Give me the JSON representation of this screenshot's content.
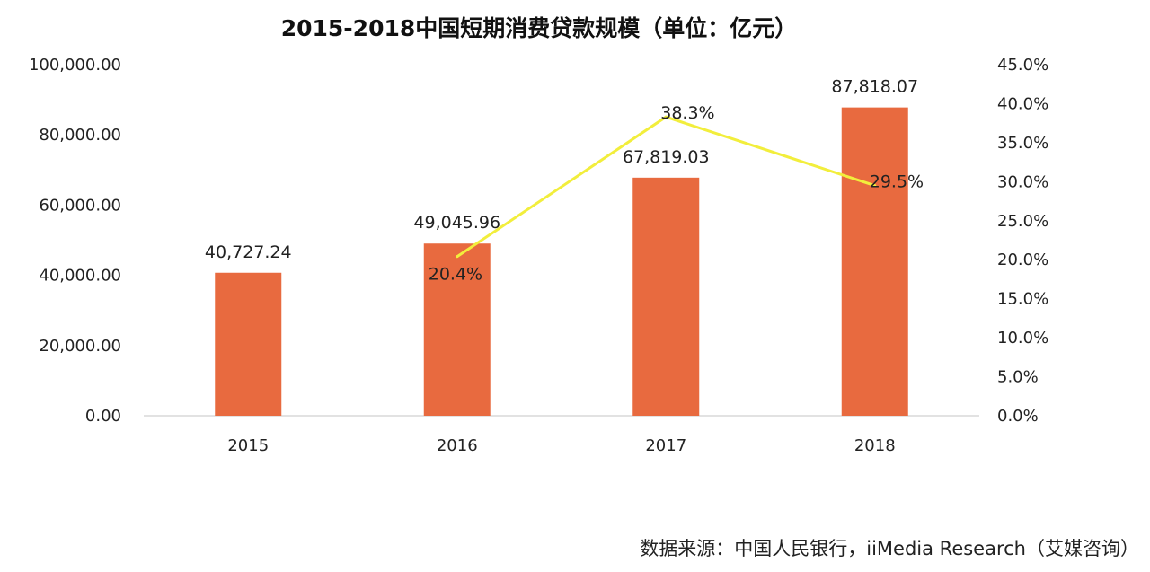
{
  "chart_data": {
    "type": "bar",
    "title": "2015-2018中国短期消费贷款规模（单位：亿元）",
    "categories": [
      "2015",
      "2016",
      "2017",
      "2018"
    ],
    "series": [
      {
        "type": "bar",
        "axis": "left",
        "values": [
          40727.24,
          49045.96,
          67819.03,
          87818.07
        ],
        "labels": [
          "40,727.24",
          "49,045.96",
          "67,819.03",
          "87,818.07"
        ],
        "color": "#E86A3F"
      },
      {
        "type": "line",
        "axis": "right",
        "values": [
          null,
          20.4,
          38.3,
          29.5
        ],
        "labels": [
          "",
          "20.4%",
          "38.3%",
          "29.5%"
        ],
        "color": "#F2EE3C"
      }
    ],
    "y_left": {
      "range": [
        0,
        100000
      ],
      "ticks": [
        "0.00",
        "20,000.00",
        "40,000.00",
        "60,000.00",
        "80,000.00",
        "100,000.00"
      ]
    },
    "y_right": {
      "range": [
        0,
        45
      ],
      "ticks": [
        "0.0%",
        "5.0%",
        "10.0%",
        "15.0%",
        "20.0%",
        "25.0%",
        "30.0%",
        "35.0%",
        "40.0%",
        "45.0%"
      ]
    },
    "grid": false,
    "legend": "none"
  },
  "source": "数据来源：中国人民银行，iiMedia Research（艾媒咨询）"
}
